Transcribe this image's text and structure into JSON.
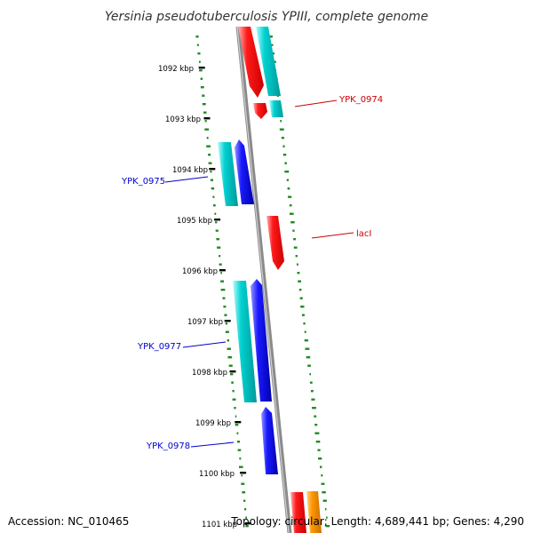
{
  "title": "Yersinia pseudotuberculosis YPIII, complete genome",
  "footer": {
    "accession": "Accession: NC_010465",
    "topology": "Topology: circular; Length: 4,689,441 bp; Genes: 4,290"
  },
  "ticks": [
    "1092 kbp",
    "1093 kbp",
    "1094 kbp",
    "1095 kbp",
    "1096 kbp",
    "1097 kbp",
    "1098 kbp",
    "1099 kbp",
    "1100 kbp",
    "1101 kbp"
  ],
  "gene_labels": [
    {
      "name": "YPK_0974",
      "color": "#cc0000"
    },
    {
      "name": "YPK_0975",
      "color": "#0000cc"
    },
    {
      "name": "lacI",
      "color": "#cc0000"
    },
    {
      "name": "YPK_0977",
      "color": "#0000cc"
    },
    {
      "name": "YPK_0978",
      "color": "#0000cc"
    }
  ],
  "colors": {
    "forward_cds": "#ff0000",
    "reverse_cds": "#0000ee",
    "rna_cds": "#00cccc",
    "other": "#ff9900",
    "backbone": "#888888",
    "gc_dots": "#228b22"
  }
}
